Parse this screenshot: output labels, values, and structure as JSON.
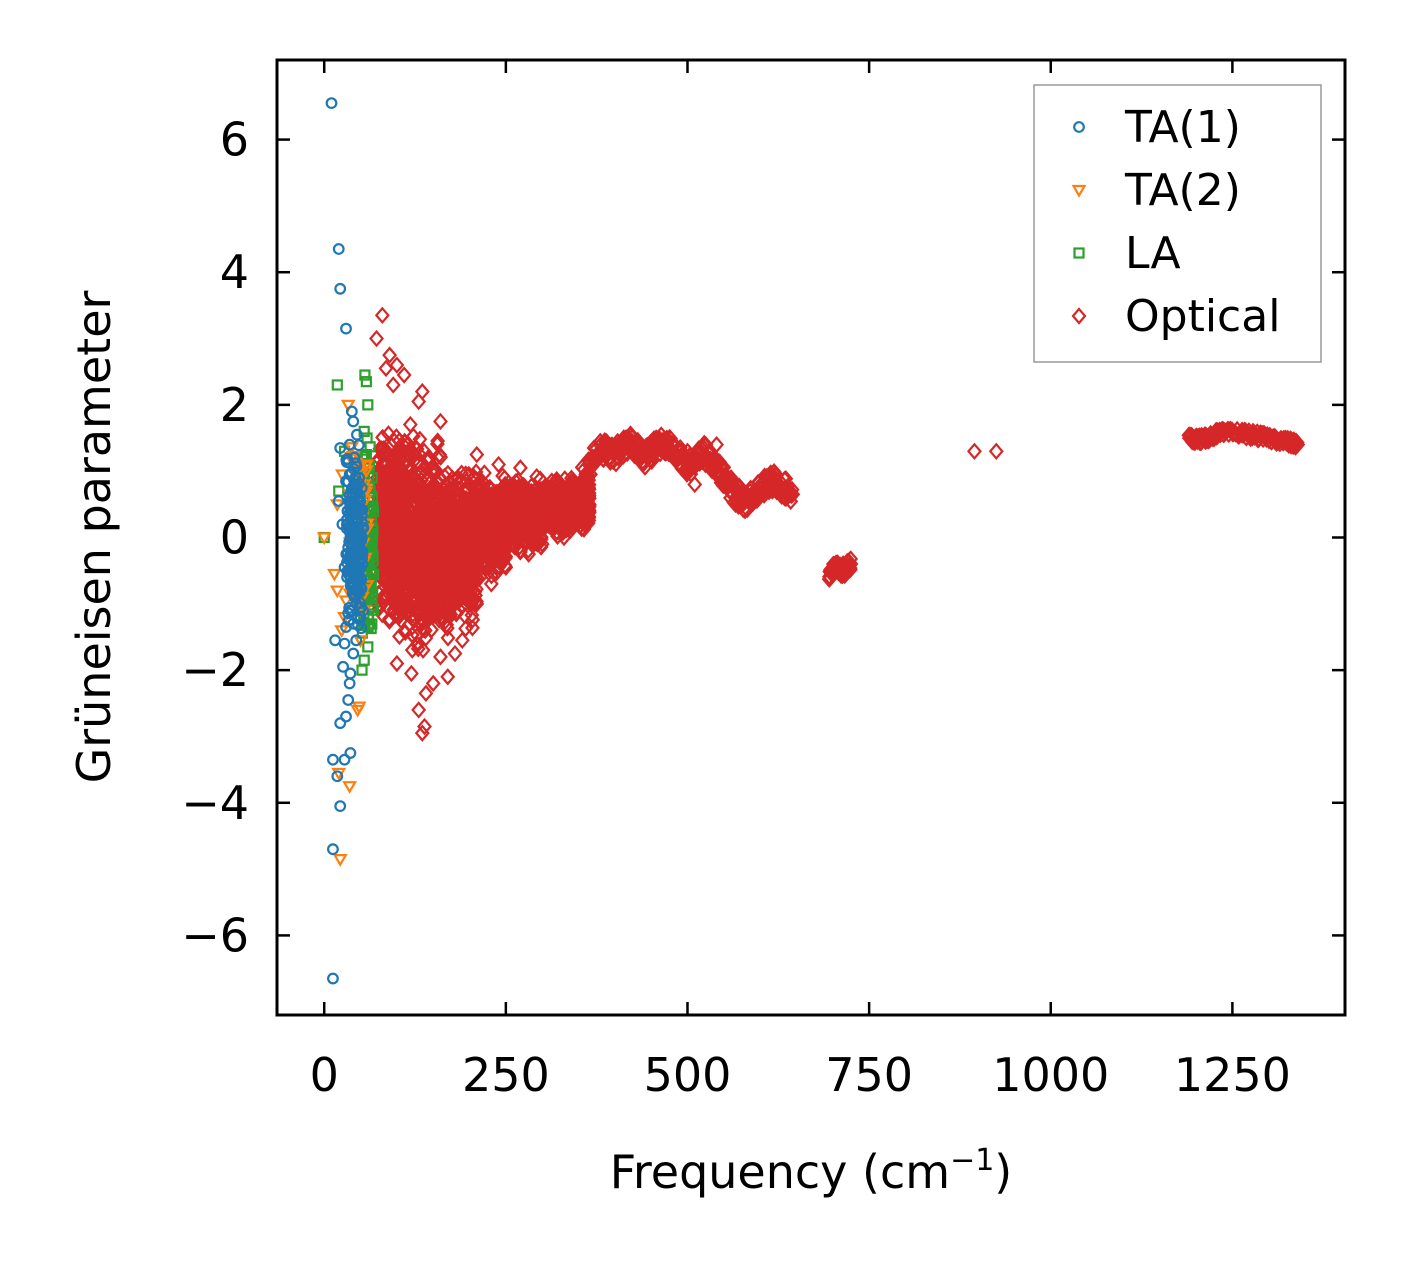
{
  "chart_data": {
    "type": "scatter",
    "title": "",
    "xlabel": "Frequency (cm",
    "xlabel_sup": "−1",
    "xlabel_close": ")",
    "ylabel": "Grüneisen parameter",
    "xlim": [
      -65,
      1405
    ],
    "ylim": [
      -7.2,
      7.2
    ],
    "xticks": [
      0,
      250,
      500,
      750,
      1000,
      1250
    ],
    "xtick_labels": [
      "0",
      "250",
      "500",
      "750",
      "1000",
      "1250"
    ],
    "yticks": [
      -6,
      -4,
      -2,
      0,
      2,
      4,
      6
    ],
    "ytick_labels": [
      "−6",
      "−4",
      "−2",
      "0",
      "2",
      "4",
      "6"
    ],
    "legend_position": "top-right",
    "grid": false,
    "colors": {
      "TA(1)": "#1f77b4",
      "TA(2)": "#ff7f0e",
      "LA": "#2ca02c",
      "Optical": "#d62728"
    },
    "series": [
      {
        "name": "TA(1)",
        "marker": "circle",
        "points": [
          [
            10,
            6.55
          ],
          [
            20,
            4.35
          ],
          [
            22,
            3.75
          ],
          [
            30,
            3.15
          ],
          [
            12,
            -6.65
          ],
          [
            12,
            -4.7
          ],
          [
            22,
            -4.05
          ],
          [
            12,
            -3.35
          ],
          [
            18,
            -3.6
          ],
          [
            28,
            -3.35
          ],
          [
            36,
            -3.25
          ],
          [
            22,
            -2.8
          ],
          [
            30,
            -2.7
          ],
          [
            33,
            -2.45
          ],
          [
            26,
            -1.95
          ],
          [
            35,
            -2.2
          ],
          [
            28,
            -1.6
          ],
          [
            40,
            -1.75
          ],
          [
            15,
            -1.55
          ],
          [
            44,
            -1.55
          ],
          [
            36,
            -2.05
          ],
          [
            22,
            1.35
          ],
          [
            35,
            1.4
          ],
          [
            40,
            1.75
          ],
          [
            38,
            1.9
          ],
          [
            45,
            1.55
          ],
          [
            30,
            0.85
          ],
          [
            48,
            0.9
          ],
          [
            20,
            0.55
          ],
          [
            25,
            0.2
          ],
          [
            45,
            0.75
          ],
          [
            38,
            0.6
          ],
          [
            33,
            -0.15
          ],
          [
            28,
            -0.45
          ],
          [
            48,
            -0.65
          ],
          [
            42,
            -0.9
          ],
          [
            36,
            -1.1
          ],
          [
            40,
            -1.3
          ],
          [
            50,
            -0.35
          ],
          [
            46,
            0.45
          ],
          [
            52,
            0.15
          ],
          [
            38,
            -0.7
          ],
          [
            44,
            -1.0
          ],
          [
            32,
            0.4
          ],
          [
            50,
            -1.2
          ],
          [
            41,
            0.05
          ],
          [
            47,
            -0.2
          ],
          [
            35,
            0.95
          ],
          [
            43,
            0.35
          ],
          [
            30,
            -1.35
          ],
          [
            49,
            0.62
          ],
          [
            37,
            -0.52
          ],
          [
            45,
            -0.82
          ],
          [
            39,
            0.28
          ],
          [
            51,
            -0.05
          ]
        ]
      },
      {
        "name": "TA(2)",
        "marker": "triangle-down",
        "points": [
          [
            22,
            -4.85
          ],
          [
            35,
            -3.75
          ],
          [
            20,
            -3.55
          ],
          [
            48,
            -2.55
          ],
          [
            46,
            -2.6
          ],
          [
            33,
            2.0
          ],
          [
            25,
            0.95
          ],
          [
            40,
            1.2
          ],
          [
            46,
            1.05
          ],
          [
            55,
            0.8
          ],
          [
            18,
            0.5
          ],
          [
            14,
            -0.55
          ],
          [
            18,
            -0.8
          ],
          [
            24,
            -1.4
          ],
          [
            30,
            -0.95
          ],
          [
            28,
            -1.2
          ],
          [
            50,
            -1.55
          ],
          [
            52,
            0.3
          ],
          [
            58,
            1.1
          ],
          [
            42,
            -0.3
          ],
          [
            48,
            -0.6
          ],
          [
            38,
            0.15
          ],
          [
            55,
            -1.1
          ],
          [
            0,
            0.0
          ],
          [
            44,
            0.7
          ]
        ]
      },
      {
        "name": "LA",
        "marker": "square",
        "points": [
          [
            18,
            2.3
          ],
          [
            56,
            2.45
          ],
          [
            58,
            2.35
          ],
          [
            60,
            2.0
          ],
          [
            55,
            1.6
          ],
          [
            58,
            1.25
          ],
          [
            62,
            1.05
          ],
          [
            66,
            0.9
          ],
          [
            62,
            0.55
          ],
          [
            65,
            0.25
          ],
          [
            28,
            1.3
          ],
          [
            20,
            0.7
          ],
          [
            60,
            -0.4
          ],
          [
            58,
            -0.95
          ],
          [
            55,
            -1.3
          ],
          [
            60,
            -1.65
          ],
          [
            55,
            -1.85
          ],
          [
            52,
            -2.0
          ],
          [
            0,
            0.0
          ],
          [
            66,
            -0.2
          ],
          [
            63,
            0.7
          ],
          [
            57,
            -0.7
          ],
          [
            64,
            0.4
          ],
          [
            59,
            1.5
          ],
          [
            61,
            -1.2
          ]
        ]
      },
      {
        "name": "Optical",
        "marker": "diamond",
        "points": [
          [
            80,
            3.35
          ],
          [
            72,
            3.0
          ],
          [
            90,
            2.75
          ],
          [
            100,
            2.6
          ],
          [
            95,
            2.3
          ],
          [
            135,
            2.2
          ],
          [
            85,
            2.55
          ],
          [
            110,
            2.45
          ],
          [
            130,
            2.05
          ],
          [
            160,
            1.75
          ],
          [
            100,
            -1.9
          ],
          [
            120,
            -2.05
          ],
          [
            138,
            -2.85
          ],
          [
            135,
            -2.95
          ],
          [
            130,
            -2.6
          ],
          [
            140,
            -2.35
          ],
          [
            150,
            -2.2
          ],
          [
            170,
            -2.1
          ],
          [
            160,
            -1.8
          ],
          [
            190,
            -1.55
          ],
          [
            180,
            -1.75
          ],
          [
            210,
            -1.0
          ],
          [
            230,
            -0.7
          ],
          [
            250,
            -0.45
          ],
          [
            270,
            -0.2
          ],
          [
            300,
            -0.1
          ],
          [
            330,
            0.0
          ],
          [
            350,
            0.3
          ],
          [
            290,
            0.7
          ],
          [
            320,
            0.85
          ],
          [
            240,
            1.1
          ],
          [
            210,
            1.25
          ],
          [
            270,
            1.05
          ],
          [
            360,
            0.95
          ],
          [
            345,
            0.55
          ],
          [
            380,
            1.45
          ],
          [
            420,
            1.4
          ],
          [
            440,
            1.25
          ],
          [
            470,
            1.45
          ],
          [
            500,
            1.3
          ],
          [
            510,
            0.8
          ],
          [
            520,
            1.2
          ],
          [
            540,
            1.4
          ],
          [
            560,
            0.9
          ],
          [
            590,
            0.6
          ],
          [
            610,
            0.85
          ],
          [
            640,
            0.7
          ],
          [
            710,
            -0.45
          ],
          [
            895,
            1.3
          ],
          [
            925,
            1.3
          ],
          [
            1195,
            1.5
          ],
          [
            1240,
            1.58
          ],
          [
            1280,
            1.52
          ],
          [
            1310,
            1.45
          ],
          [
            1335,
            1.38
          ]
        ],
        "bands": [
          {
            "x": [
              72,
              105
            ],
            "y": [
              -1.5,
              1.9
            ]
          },
          {
            "x": [
              100,
              140
            ],
            "y": [
              -2.3,
              2.0
            ]
          },
          {
            "x": [
              135,
              175
            ],
            "y": [
              -2.05,
              1.7
            ]
          },
          {
            "x": [
              170,
              210
            ],
            "y": [
              -1.55,
              1.25
            ]
          },
          {
            "x": [
              205,
              250
            ],
            "y": [
              -0.8,
              1.1
            ]
          },
          {
            "x": [
              245,
              300
            ],
            "y": [
              -0.35,
              1.05
            ]
          },
          {
            "x": [
              295,
              345
            ],
            "y": [
              -0.05,
              0.95
            ]
          },
          {
            "x": [
              340,
              365
            ],
            "y": [
              0.1,
              0.95
            ]
          }
        ],
        "curves": [
          {
            "x": [
              355,
              380,
              400,
              420,
              440,
              460,
              480,
              500,
              520,
              540,
              560,
              580,
              600,
              620,
              645
            ],
            "y": [
              0.9,
              1.35,
              1.25,
              1.45,
              1.2,
              1.4,
              1.35,
              1.05,
              1.3,
              1.1,
              0.7,
              0.55,
              0.75,
              0.85,
              0.65
            ],
            "spread": 0.16
          },
          {
            "x": [
              695,
              705,
              715,
              725
            ],
            "y": [
              -0.55,
              -0.45,
              -0.5,
              -0.4
            ],
            "spread": 0.1
          },
          {
            "x": [
              1190,
              1210,
              1230,
              1260,
              1290,
              1320,
              1340
            ],
            "y": [
              1.5,
              1.48,
              1.57,
              1.58,
              1.52,
              1.46,
              1.4
            ],
            "spread": 0.06
          }
        ]
      }
    ]
  }
}
